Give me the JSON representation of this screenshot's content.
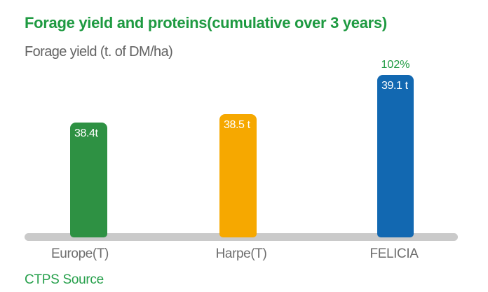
{
  "chart_data": {
    "type": "bar",
    "title": "Forage yield and proteins(cumulative over 3 years)",
    "subtitle": "Forage yield (t. of DM/ha)",
    "source": "CTPS Source",
    "categories": [
      "Europe(T)",
      "Harpe(T)",
      "FELICIA"
    ],
    "values": [
      38.4,
      38.5,
      39.1
    ],
    "value_labels": [
      "38.4t",
      "38.5 t",
      "39.1 t"
    ],
    "annotations": [
      {
        "category": "FELICIA",
        "text": "102%"
      }
    ],
    "series_colors": [
      "#2E9143",
      "#F6A800",
      "#1268B1"
    ],
    "layout": {
      "legend": false,
      "gridlines": false,
      "y_axis_visible": false,
      "baseline_color": "#CACACA",
      "title_color": "#1E9A41",
      "subtitle_color": "#636363",
      "tick_label_color": "#6E6E6E",
      "value_label_color": "#FFFFFF"
    }
  }
}
